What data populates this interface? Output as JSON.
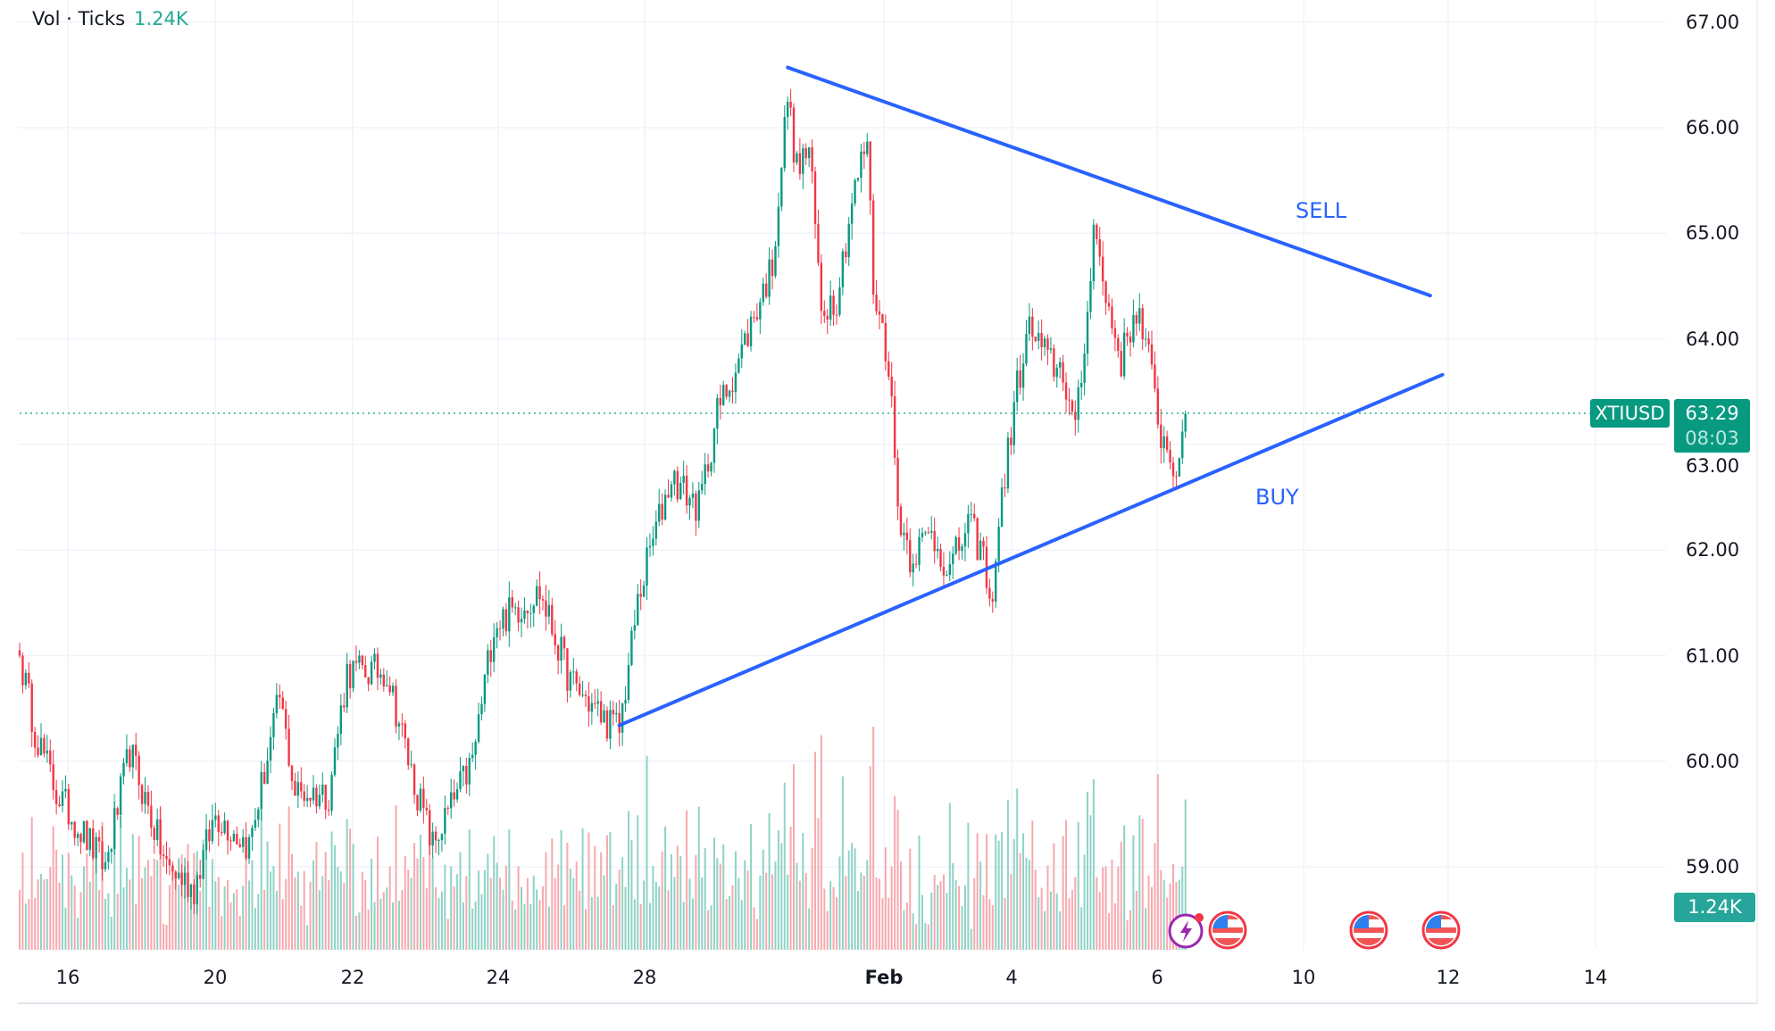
{
  "legend": {
    "label": "Vol · Ticks",
    "value": "1.24K"
  },
  "symbol": "XTIUSD",
  "last_price": "63.29",
  "countdown": "08:03",
  "volume_badge": "1.24K",
  "annotations": {
    "sell": "SELL",
    "buy": "BUY"
  },
  "event_icons": [
    "lightning-event-icon",
    "us-flag-icon",
    "us-flag-icon",
    "us-flag-icon"
  ],
  "colors": {
    "up": "#089981",
    "down": "#f23645",
    "trendline": "#2962ff",
    "badge": "#089981"
  },
  "chart_data": {
    "type": "candlestick",
    "interval": "1h",
    "y_ticks": [
      "67.00",
      "66.00",
      "65.00",
      "64.00",
      "63.00",
      "62.00",
      "61.00",
      "60.00",
      "59.00"
    ],
    "ylim": [
      58.3,
      67.1
    ],
    "x_ticks": [
      "16",
      "20",
      "22",
      "24",
      "28",
      "Feb",
      "4",
      "6",
      "10",
      "12",
      "14"
    ],
    "grid": true,
    "close_path": [
      [
        0,
        61.0
      ],
      [
        5,
        60.3
      ],
      [
        12,
        59.7
      ],
      [
        28,
        59.0
      ],
      [
        36,
        60.1
      ],
      [
        48,
        59.0
      ],
      [
        57,
        58.8
      ],
      [
        64,
        59.5
      ],
      [
        75,
        59.2
      ],
      [
        85,
        60.6
      ],
      [
        90,
        59.7
      ],
      [
        101,
        59.7
      ],
      [
        107,
        60.85
      ],
      [
        120,
        60.85
      ],
      [
        128,
        59.9
      ],
      [
        135,
        59.2
      ],
      [
        148,
        60.0
      ],
      [
        155,
        61.3
      ],
      [
        170,
        61.6
      ],
      [
        180,
        60.75
      ],
      [
        191,
        60.4
      ],
      [
        196,
        60.3
      ],
      [
        202,
        61.5
      ],
      [
        206,
        62.0
      ],
      [
        213,
        62.7
      ],
      [
        222,
        62.4
      ],
      [
        228,
        63.3
      ],
      [
        235,
        63.8
      ],
      [
        241,
        64.3
      ],
      [
        246,
        64.7
      ],
      [
        251,
        66.3
      ],
      [
        254,
        65.6
      ],
      [
        258,
        65.8
      ],
      [
        262,
        64.3
      ],
      [
        267,
        64.4
      ],
      [
        272,
        65.3
      ],
      [
        277,
        65.9
      ],
      [
        279,
        64.5
      ],
      [
        284,
        63.8
      ],
      [
        287,
        62.4
      ],
      [
        291,
        61.95
      ],
      [
        298,
        62.15
      ],
      [
        304,
        61.8
      ],
      [
        310,
        62.25
      ],
      [
        315,
        61.95
      ],
      [
        317,
        61.4
      ],
      [
        321,
        62.5
      ],
      [
        326,
        63.55
      ],
      [
        330,
        64.1
      ],
      [
        336,
        63.8
      ],
      [
        341,
        63.7
      ],
      [
        345,
        63.1
      ],
      [
        349,
        64.2
      ],
      [
        351,
        65.2
      ],
      [
        354,
        64.5
      ],
      [
        360,
        63.8
      ],
      [
        365,
        64.3
      ],
      [
        369,
        63.8
      ],
      [
        373,
        63.1
      ],
      [
        379,
        62.7
      ],
      [
        381,
        63.29
      ]
    ],
    "trendlines": [
      {
        "label": "SELL",
        "from": [
          251,
          66.57
        ],
        "to": [
          461,
          64.41
        ]
      },
      {
        "label": "BUY",
        "from": [
          196,
          60.34
        ],
        "to": [
          465,
          63.66
        ]
      }
    ],
    "last": 63.29
  }
}
